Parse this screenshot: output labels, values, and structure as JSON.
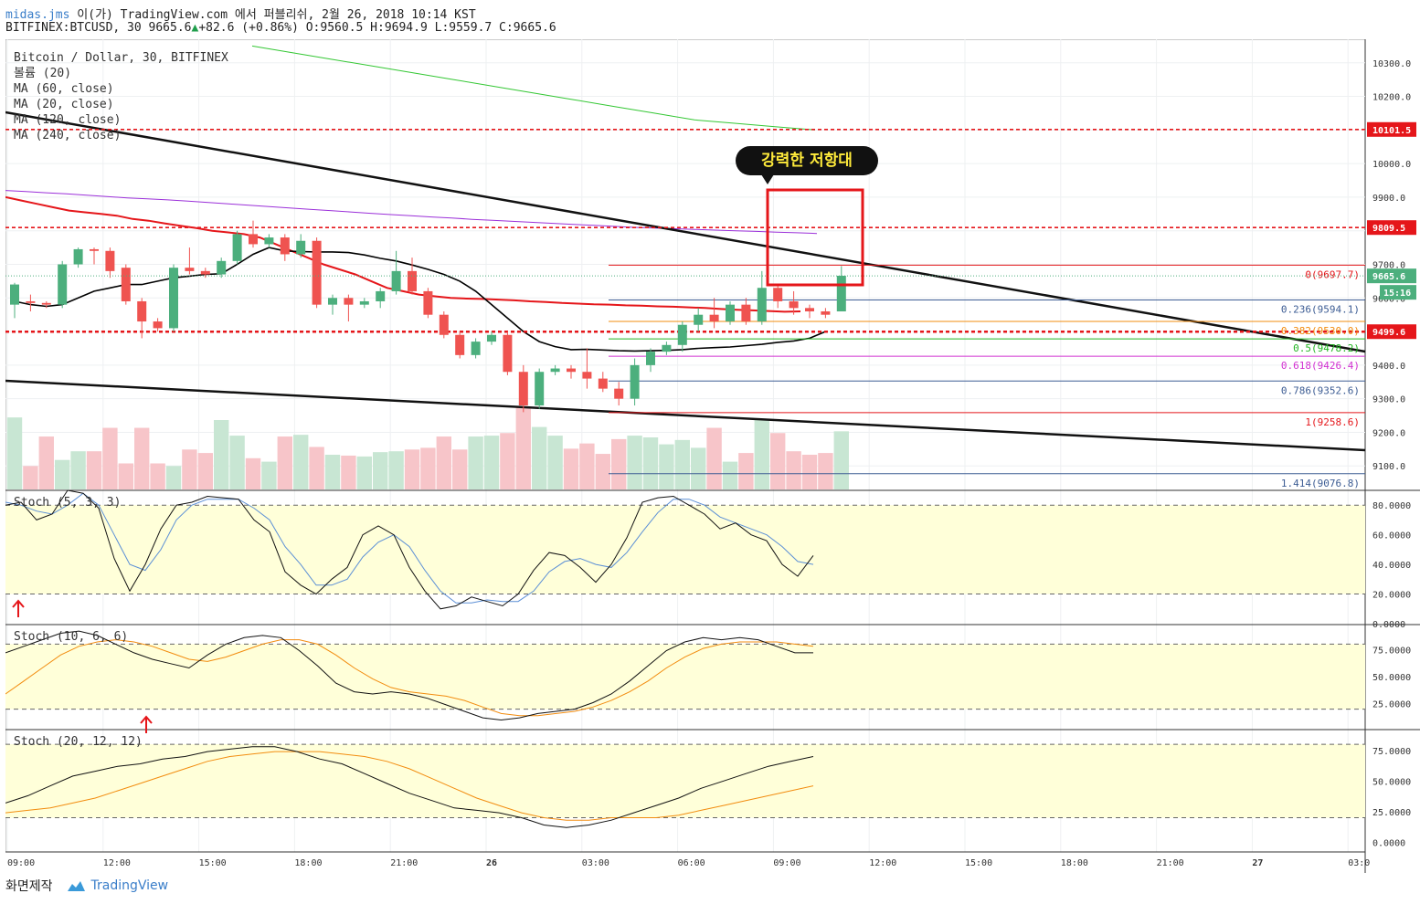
{
  "header": {
    "user": "midas.jms",
    "publish_text": "이(가) TradingView.com 에서 퍼블리쉬, 2월 26, 2018 10:14 KST",
    "symbol_line": "BITFINEX:BTCUSD, 30 9665.6",
    "change": "+82.6 (+0.86%)",
    "ohlc": "O:9560.5 H:9694.9 L:9559.7 C:9665.6"
  },
  "legend": {
    "title": "Bitcoin / Dollar, 30, BITFINEX",
    "items": [
      "볼륨 (20)",
      "MA (60, close)",
      "MA (20, close)",
      "MA (120, close)",
      "MA (240, close)"
    ]
  },
  "annotation": {
    "callout": "강력한 저항대"
  },
  "footer": {
    "made_by": "화면제작",
    "brand": "TradingView"
  },
  "colors": {
    "up": "#26a69a",
    "up_fill": "#4caf7d",
    "down": "#ef5350",
    "ma20": "#000000",
    "ma60": "#e5161a",
    "ma120": "#9b30d9",
    "ma240": "#34c734",
    "panel_bg": "#ffffd9"
  },
  "chart_data": {
    "type": "candlestick",
    "title": "Bitcoin / Dollar, 30, BITFINEX",
    "x_ticks": [
      "09:00",
      "12:00",
      "15:00",
      "18:00",
      "21:00",
      "26",
      "03:00",
      "06:00",
      "09:00",
      "12:00",
      "15:00",
      "18:00",
      "21:00",
      "27",
      "03:0"
    ],
    "price_ticks": [
      10300.0,
      10200.0,
      10100.0,
      10000.0,
      9900.0,
      9800.0,
      9700.0,
      9600.0,
      9500.0,
      9400.0,
      9300.0,
      9200.0,
      9100.0
    ],
    "ylim": [
      9030,
      10370
    ],
    "candles": [
      [
        9580,
        9640,
        9540,
        9645
      ],
      [
        9590,
        9585,
        9560,
        9610
      ],
      [
        9585,
        9580,
        9570,
        9590
      ],
      [
        9580,
        9700,
        9570,
        9710
      ],
      [
        9700,
        9745,
        9690,
        9750
      ],
      [
        9745,
        9740,
        9700,
        9750
      ],
      [
        9740,
        9680,
        9660,
        9750
      ],
      [
        9690,
        9590,
        9580,
        9700
      ],
      [
        9590,
        9530,
        9480,
        9600
      ],
      [
        9530,
        9510,
        9500,
        9540
      ],
      [
        9510,
        9690,
        9500,
        9700
      ],
      [
        9690,
        9680,
        9670,
        9750
      ],
      [
        9680,
        9670,
        9660,
        9690
      ],
      [
        9670,
        9710,
        9660,
        9720
      ],
      [
        9710,
        9790,
        9700,
        9800
      ],
      [
        9790,
        9760,
        9750,
        9830
      ],
      [
        9760,
        9780,
        9750,
        9790
      ],
      [
        9780,
        9730,
        9710,
        9790
      ],
      [
        9730,
        9770,
        9720,
        9790
      ],
      [
        9770,
        9580,
        9570,
        9780
      ],
      [
        9580,
        9600,
        9550,
        9610
      ],
      [
        9600,
        9580,
        9530,
        9610
      ],
      [
        9580,
        9590,
        9570,
        9600
      ],
      [
        9590,
        9620,
        9570,
        9630
      ],
      [
        9620,
        9680,
        9610,
        9740
      ],
      [
        9680,
        9620,
        9610,
        9720
      ],
      [
        9620,
        9550,
        9540,
        9630
      ],
      [
        9550,
        9490,
        9480,
        9560
      ],
      [
        9490,
        9430,
        9420,
        9500
      ],
      [
        9430,
        9470,
        9420,
        9480
      ],
      [
        9470,
        9490,
        9460,
        9500
      ],
      [
        9490,
        9380,
        9370,
        9500
      ],
      [
        9380,
        9280,
        9260,
        9400
      ],
      [
        9280,
        9380,
        9270,
        9390
      ],
      [
        9380,
        9390,
        9370,
        9400
      ],
      [
        9390,
        9380,
        9360,
        9400
      ],
      [
        9380,
        9360,
        9330,
        9450
      ],
      [
        9360,
        9330,
        9320,
        9380
      ],
      [
        9330,
        9300,
        9280,
        9350
      ],
      [
        9300,
        9400,
        9280,
        9420
      ],
      [
        9400,
        9440,
        9380,
        9450
      ],
      [
        9440,
        9460,
        9430,
        9470
      ],
      [
        9460,
        9520,
        9440,
        9530
      ],
      [
        9520,
        9550,
        9500,
        9570
      ],
      [
        9550,
        9530,
        9510,
        9600
      ],
      [
        9530,
        9580,
        9520,
        9590
      ],
      [
        9580,
        9530,
        9520,
        9600
      ],
      [
        9530,
        9630,
        9520,
        9680
      ],
      [
        9630,
        9590,
        9570,
        9640
      ],
      [
        9590,
        9570,
        9550,
        9620
      ],
      [
        9570,
        9560,
        9540,
        9580
      ],
      [
        9560,
        9550,
        9540,
        9570
      ],
      [
        9560,
        9666,
        9560,
        9695
      ]
    ],
    "volume": [
      0.83,
      0.27,
      0.61,
      0.34,
      0.44,
      0.44,
      0.71,
      0.3,
      0.71,
      0.3,
      0.27,
      0.46,
      0.42,
      0.8,
      0.62,
      0.36,
      0.32,
      0.61,
      0.63,
      0.49,
      0.4,
      0.39,
      0.38,
      0.43,
      0.44,
      0.46,
      0.48,
      0.61,
      0.46,
      0.61,
      0.62,
      0.65,
      0.95,
      0.72,
      0.62,
      0.47,
      0.53,
      0.41,
      0.58,
      0.62,
      0.6,
      0.52,
      0.57,
      0.48,
      0.71,
      0.32,
      0.42,
      0.81,
      0.65,
      0.44,
      0.4,
      0.42,
      0.67
    ],
    "ma20": [
      9590,
      9580,
      9575,
      9580,
      9600,
      9620,
      9630,
      9640,
      9640,
      9650,
      9660,
      9665,
      9670,
      9672,
      9700,
      9730,
      9750,
      9740,
      9738,
      9737,
      9737,
      9735,
      9728,
      9718,
      9710,
      9698,
      9685,
      9670,
      9650,
      9620,
      9580,
      9540,
      9500,
      9470,
      9455,
      9446,
      9447,
      9445,
      9443,
      9442,
      9443,
      9444,
      9446,
      9450,
      9452,
      9454,
      9458,
      9462,
      9468,
      9472,
      9480,
      9500
    ],
    "ma60": [
      9900,
      9890,
      9880,
      9870,
      9860,
      9855,
      9850,
      9845,
      9835,
      9830,
      9822,
      9815,
      9808,
      9800,
      9795,
      9790,
      9780,
      9760,
      9740,
      9720,
      9700,
      9685,
      9670,
      9650,
      9630,
      9620,
      9610,
      9605,
      9600,
      9598,
      9597,
      9595,
      9593,
      9590,
      9588,
      9585,
      9583,
      9581,
      9580,
      9578,
      9577,
      9575,
      9574,
      9572,
      9570,
      9567,
      9565,
      9563,
      9561,
      9559,
      9560
    ],
    "ma120": [
      9920,
      9917,
      9913,
      9910,
      9906,
      9902,
      9898,
      9895,
      9892,
      9888,
      9884,
      9880,
      9876,
      9872,
      9868,
      9864,
      9860,
      9856,
      9852,
      9848,
      9845,
      9841,
      9838,
      9834,
      9831,
      9828,
      9825,
      9822,
      9819,
      9816,
      9813,
      9810,
      9808,
      9806,
      9804,
      9802,
      9800,
      9798,
      9796,
      9794,
      9792
    ],
    "ma240": [
      10350,
      10330,
      10310,
      10290,
      10270,
      10250,
      10230,
      10210,
      10190,
      10170,
      10150,
      10130,
      10120,
      10110,
      10100
    ],
    "hlines": [
      {
        "price": 10101.5,
        "label": "10101.5",
        "color": "#e5161a",
        "dashed": true
      },
      {
        "price": 9809.5,
        "label": "9809.5",
        "color": "#e5161a",
        "dashed": true
      },
      {
        "price": 9499.6,
        "label": "9499.6",
        "color": "#e5161a",
        "dashed": true,
        "thick": true
      }
    ],
    "fib": [
      {
        "level": "0",
        "price": 9697.7,
        "label": "0(9697.7)",
        "color": "#e5161a"
      },
      {
        "level": "0.236",
        "price": 9594.1,
        "label": "0.236(9594.1)",
        "color": "#3d5d94"
      },
      {
        "level": "0.382",
        "price": 9530.0,
        "label": "0.382(9530.0)",
        "color": "#f28c0f"
      },
      {
        "level": "0.5",
        "price": 9478.2,
        "label": "0.5(9478.2)",
        "color": "#22b522"
      },
      {
        "level": "0.618",
        "price": 9426.4,
        "label": "0.618(9426.4)",
        "color": "#d130d1"
      },
      {
        "level": "0.786",
        "price": 9352.6,
        "label": "0.786(9352.6)",
        "color": "#3d5d94"
      },
      {
        "level": "1",
        "price": 9258.6,
        "label": "1(9258.6)",
        "color": "#e5161a"
      },
      {
        "level": "1.414",
        "price": 9076.8,
        "label": "1.414(9076.8)",
        "color": "#3d5d94"
      }
    ],
    "last_price": {
      "value": "9665.6",
      "countdown": "15:16"
    },
    "stoch_panels": [
      {
        "name": "Stoch (5, 3, 3)",
        "ticks": [
          "80.0000",
          "60.0000",
          "40.0000",
          "20.0000",
          "0.0000"
        ],
        "band": [
          20,
          80
        ],
        "ylim": [
          0,
          90
        ],
        "k": [
          80,
          82,
          70,
          74,
          90,
          88,
          78,
          44,
          22,
          40,
          64,
          80,
          82,
          86,
          85,
          84,
          70,
          62,
          35,
          26,
          20,
          30,
          38,
          60,
          66,
          60,
          38,
          22,
          10,
          12,
          18,
          15,
          12,
          20,
          36,
          48,
          46,
          38,
          28,
          40,
          58,
          82,
          85,
          86,
          80,
          74,
          64,
          68,
          60,
          56,
          40,
          32,
          46
        ],
        "d": [
          82,
          80,
          76,
          74,
          80,
          88,
          80,
          60,
          40,
          36,
          50,
          70,
          80,
          84,
          84,
          84,
          78,
          70,
          52,
          40,
          26,
          26,
          30,
          45,
          55,
          60,
          52,
          36,
          22,
          14,
          14,
          16,
          15,
          15,
          22,
          35,
          42,
          44,
          40,
          38,
          48,
          62,
          75,
          84,
          84,
          80,
          72,
          68,
          64,
          60,
          52,
          42,
          40
        ]
      },
      {
        "name": "Stoch (10, 6, 6)",
        "ticks": [
          "75.0000",
          "50.0000",
          "25.0000"
        ],
        "band": [
          20,
          80
        ],
        "ylim": [
          2,
          98
        ],
        "k": [
          72,
          78,
          84,
          90,
          92,
          88,
          80,
          72,
          66,
          62,
          58,
          70,
          80,
          86,
          88,
          86,
          74,
          60,
          44,
          36,
          34,
          36,
          34,
          30,
          24,
          18,
          12,
          10,
          12,
          16,
          18,
          20,
          26,
          34,
          46,
          60,
          74,
          82,
          86,
          84,
          86,
          84,
          78,
          72,
          72
        ],
        "d": [
          34,
          46,
          58,
          70,
          78,
          82,
          84,
          82,
          78,
          72,
          66,
          64,
          68,
          74,
          80,
          84,
          84,
          80,
          70,
          58,
          48,
          40,
          36,
          34,
          32,
          28,
          22,
          16,
          14,
          14,
          16,
          18,
          22,
          28,
          36,
          46,
          58,
          68,
          76,
          80,
          82,
          82,
          82,
          80,
          78
        ]
      },
      {
        "name": "Stoch (20, 12, 12)",
        "ticks": [
          "75.0000",
          "50.0000",
          "25.0000",
          "0.0000"
        ],
        "band": [
          20,
          80
        ],
        "ylim": [
          -8,
          92
        ],
        "k": [
          32,
          38,
          46,
          54,
          58,
          62,
          64,
          68,
          70,
          74,
          76,
          78,
          78,
          74,
          68,
          64,
          56,
          48,
          40,
          34,
          28,
          26,
          24,
          20,
          14,
          12,
          14,
          18,
          24,
          30,
          36,
          44,
          50,
          56,
          62,
          66,
          70
        ],
        "d": [
          24,
          26,
          28,
          32,
          36,
          42,
          48,
          54,
          60,
          66,
          70,
          72,
          74,
          74,
          74,
          72,
          70,
          66,
          60,
          52,
          44,
          36,
          30,
          24,
          20,
          18,
          18,
          20,
          20,
          20,
          22,
          26,
          30,
          34,
          38,
          42,
          46
        ]
      }
    ]
  }
}
